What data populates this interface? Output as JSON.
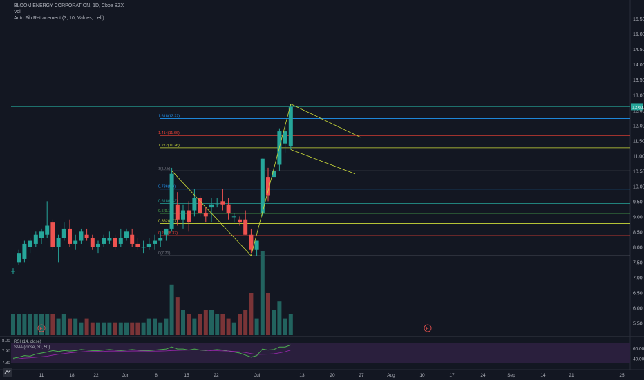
{
  "legend": {
    "title": "BLOOM ENERGY CORPORATION, 1D, Cboe BZX",
    "line2": "Vol",
    "line3": "Auto Fib Retracement (3, 10, Values, Left)"
  },
  "rsi_legend": {
    "line1": "RSI (14, close)",
    "line2": "SMA (close, 30, 50)"
  },
  "price_axis": {
    "labels": [
      "15.50",
      "15.00",
      "14.50",
      "14.00",
      "13.50",
      "13.00",
      "12.50",
      "12.00",
      "11.50",
      "11.00",
      "10.50",
      "10.00",
      "9.50",
      "9.00",
      "8.50",
      "8.00",
      "7.50",
      "7.00",
      "6.50",
      "6.00",
      "5.50"
    ],
    "last_price": "12.61"
  },
  "rsi_axis": {
    "labels": [
      "60.00",
      "40.00"
    ]
  },
  "rsi_left_axis": {
    "labels": [
      "8.00",
      "7.90",
      "7.80"
    ]
  },
  "time_axis": {
    "labels": [
      "11",
      "18",
      "22",
      "Jun",
      "8",
      "15",
      "22",
      "Jul",
      "13",
      "20",
      "27",
      "Aug",
      "10",
      "17",
      "24",
      "Sep",
      "14",
      "21",
      "25"
    ]
  },
  "fib_levels": [
    {
      "label": "1.618(12.22)",
      "value": 12.22,
      "color": "#2196f3"
    },
    {
      "label": "1.414(11.66)",
      "value": 11.66,
      "color": "#f44336"
    },
    {
      "label": "1.272(11.26)",
      "value": 11.26,
      "color": "#cddc39"
    },
    {
      "label": "1(10.5)",
      "value": 10.5,
      "color": "#787b86"
    },
    {
      "label": "0.786(9.9)",
      "value": 9.9,
      "color": "#2196f3"
    },
    {
      "label": "0.618(9.43)",
      "value": 9.43,
      "color": "#26a69a"
    },
    {
      "label": "0.5(9.1)",
      "value": 9.1,
      "color": "#4caf50"
    },
    {
      "label": "0.382(8.77)",
      "value": 8.77,
      "color": "#cddc39"
    },
    {
      "label": "0.236(8.37)",
      "value": 8.37,
      "color": "#f44336"
    },
    {
      "label": "0(7.71)",
      "value": 7.71,
      "color": "#787b86"
    }
  ],
  "earnings_markers": [
    "E",
    "E"
  ],
  "colors": {
    "up": "#26a69a",
    "down": "#ef5350",
    "up_vol": "#22635f",
    "down_vol": "#7a3437",
    "rsi_line": "#4caf50",
    "rsi_bg": "#2a1f3d",
    "last_price_bg": "#26a69a"
  },
  "chart_data": {
    "type": "candlestick",
    "y_range": [
      5.1,
      15.8
    ],
    "candles": [
      {
        "o": 7.2,
        "h": 7.3,
        "l": 7.1,
        "c": 7.2
      },
      {
        "o": 7.5,
        "h": 7.9,
        "l": 7.4,
        "c": 7.8
      },
      {
        "o": 7.6,
        "h": 8.2,
        "l": 7.5,
        "c": 8.1
      },
      {
        "o": 8.0,
        "h": 8.3,
        "l": 7.8,
        "c": 8.2
      },
      {
        "o": 8.1,
        "h": 8.5,
        "l": 8.0,
        "c": 8.4
      },
      {
        "o": 8.3,
        "h": 8.6,
        "l": 8.1,
        "c": 8.5
      },
      {
        "o": 8.4,
        "h": 9.5,
        "l": 8.3,
        "c": 8.7
      },
      {
        "o": 8.8,
        "h": 8.9,
        "l": 7.9,
        "c": 8.0
      },
      {
        "o": 8.0,
        "h": 8.4,
        "l": 7.5,
        "c": 8.3
      },
      {
        "o": 8.3,
        "h": 8.8,
        "l": 8.2,
        "c": 8.6
      },
      {
        "o": 8.6,
        "h": 8.9,
        "l": 8.0,
        "c": 8.1
      },
      {
        "o": 8.1,
        "h": 8.4,
        "l": 7.9,
        "c": 8.2
      },
      {
        "o": 8.2,
        "h": 8.6,
        "l": 8.1,
        "c": 8.5
      },
      {
        "o": 8.4,
        "h": 8.6,
        "l": 8.2,
        "c": 8.3
      },
      {
        "o": 8.3,
        "h": 8.4,
        "l": 7.9,
        "c": 8.0
      },
      {
        "o": 8.0,
        "h": 8.2,
        "l": 7.8,
        "c": 8.1
      },
      {
        "o": 8.1,
        "h": 8.4,
        "l": 8.0,
        "c": 8.3
      },
      {
        "o": 8.2,
        "h": 8.5,
        "l": 8.1,
        "c": 8.3
      },
      {
        "o": 8.3,
        "h": 8.4,
        "l": 7.9,
        "c": 8.0
      },
      {
        "o": 8.1,
        "h": 8.6,
        "l": 8.0,
        "c": 8.3
      },
      {
        "o": 8.3,
        "h": 8.6,
        "l": 8.2,
        "c": 8.5
      },
      {
        "o": 8.4,
        "h": 8.6,
        "l": 8.0,
        "c": 8.1
      },
      {
        "o": 8.1,
        "h": 8.3,
        "l": 7.9,
        "c": 8.0
      },
      {
        "o": 8.0,
        "h": 8.2,
        "l": 7.8,
        "c": 8.0
      },
      {
        "o": 8.0,
        "h": 8.3,
        "l": 7.9,
        "c": 8.1
      },
      {
        "o": 8.1,
        "h": 8.4,
        "l": 7.9,
        "c": 8.2
      },
      {
        "o": 8.2,
        "h": 8.5,
        "l": 8.0,
        "c": 8.3
      },
      {
        "o": 8.4,
        "h": 8.6,
        "l": 8.2,
        "c": 8.6
      },
      {
        "o": 8.6,
        "h": 10.6,
        "l": 8.5,
        "c": 10.4
      },
      {
        "o": 9.4,
        "h": 9.8,
        "l": 8.7,
        "c": 8.9
      },
      {
        "o": 8.9,
        "h": 9.4,
        "l": 8.6,
        "c": 9.2
      },
      {
        "o": 9.2,
        "h": 9.5,
        "l": 8.5,
        "c": 8.8
      },
      {
        "o": 9.2,
        "h": 9.9,
        "l": 9.0,
        "c": 9.6
      },
      {
        "o": 9.6,
        "h": 9.7,
        "l": 9.0,
        "c": 9.1
      },
      {
        "o": 9.1,
        "h": 9.3,
        "l": 8.8,
        "c": 9.0
      },
      {
        "o": 9.3,
        "h": 9.6,
        "l": 8.8,
        "c": 9.4
      },
      {
        "o": 9.4,
        "h": 9.6,
        "l": 9.3,
        "c": 9.4
      },
      {
        "o": 9.5,
        "h": 9.9,
        "l": 9.2,
        "c": 9.4
      },
      {
        "o": 9.4,
        "h": 9.6,
        "l": 8.9,
        "c": 9.1
      },
      {
        "o": 9.0,
        "h": 9.1,
        "l": 8.8,
        "c": 9.0
      },
      {
        "o": 8.9,
        "h": 9.0,
        "l": 8.7,
        "c": 8.8
      },
      {
        "o": 8.9,
        "h": 9.2,
        "l": 8.4,
        "c": 8.4
      },
      {
        "o": 8.4,
        "h": 8.6,
        "l": 7.8,
        "c": 7.9
      },
      {
        "o": 7.9,
        "h": 8.2,
        "l": 7.7,
        "c": 8.2
      },
      {
        "o": 9.1,
        "h": 10.9,
        "l": 9.0,
        "c": 10.9
      },
      {
        "o": 10.3,
        "h": 10.6,
        "l": 9.5,
        "c": 9.7
      },
      {
        "o": 10.3,
        "h": 10.6,
        "l": 10.3,
        "c": 10.5
      },
      {
        "o": 10.7,
        "h": 11.9,
        "l": 10.5,
        "c": 11.8
      },
      {
        "o": 11.4,
        "h": 12.0,
        "l": 11.1,
        "c": 11.8
      },
      {
        "o": 11.3,
        "h": 12.7,
        "l": 11.2,
        "c": 12.6
      }
    ],
    "volume": [
      0.25,
      0.25,
      0.25,
      0.25,
      0.25,
      0.25,
      0.25,
      0.25,
      0.2,
      0.25,
      0.2,
      0.2,
      0.15,
      0.2,
      0.15,
      0.15,
      0.15,
      0.15,
      0.15,
      0.15,
      0.15,
      0.15,
      0.15,
      0.15,
      0.2,
      0.2,
      0.15,
      0.2,
      0.6,
      0.45,
      0.3,
      0.25,
      0.2,
      0.25,
      0.3,
      0.3,
      0.25,
      0.25,
      0.2,
      0.15,
      0.25,
      0.3,
      0.5,
      0.2,
      1.0,
      0.5,
      0.3,
      0.4,
      0.2,
      0.25
    ],
    "rsi": [
      40,
      42,
      45,
      44,
      48,
      50,
      52,
      55,
      53,
      55,
      54,
      55,
      57,
      56,
      55,
      55,
      56,
      57,
      56,
      55,
      56,
      57,
      56,
      55,
      55,
      56,
      57,
      58,
      62,
      58,
      58,
      56,
      58,
      56,
      55,
      56,
      57,
      56,
      54,
      52,
      50,
      46,
      42,
      45,
      58,
      56,
      57,
      62,
      62,
      66
    ]
  }
}
